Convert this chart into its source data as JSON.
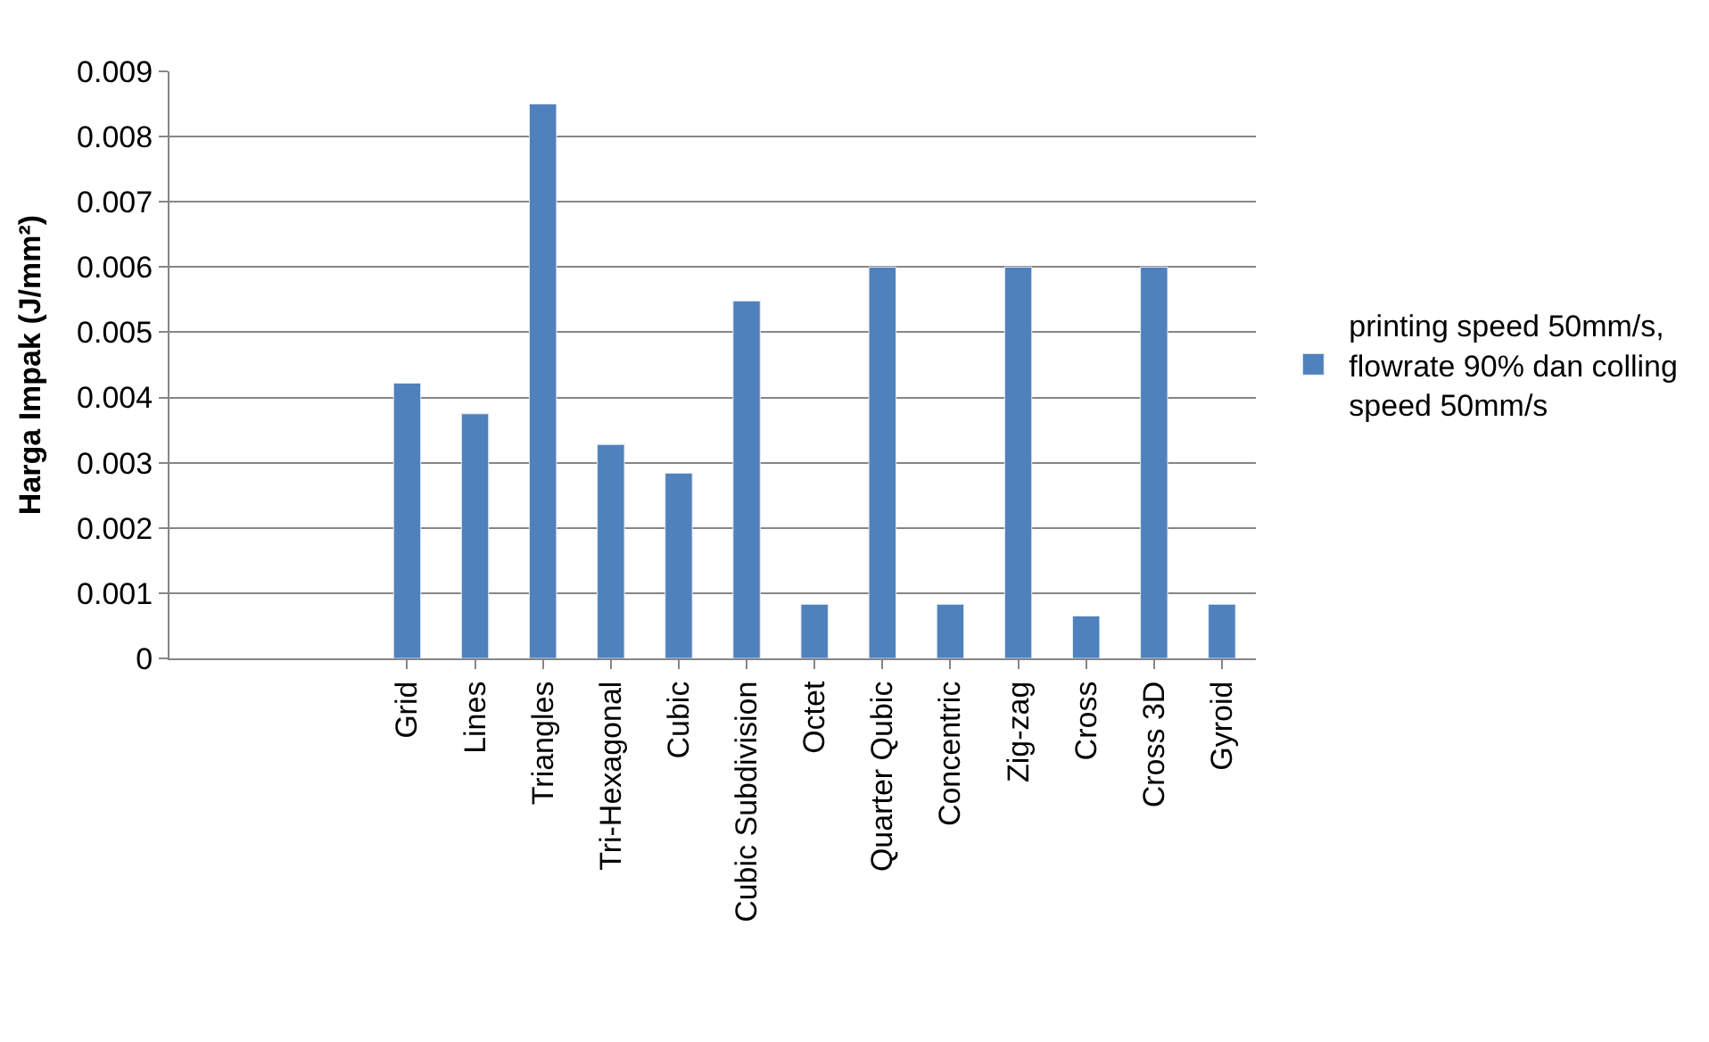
{
  "chart_data": {
    "type": "bar",
    "ylabel": "Harga Impak (J/mm²)",
    "categories": [
      null,
      null,
      null,
      "Grid",
      "Lines",
      "Triangles",
      "Tri-Hexagonal",
      "Cubic",
      "Cubic Subdivision",
      "Octet",
      "Quarter Qubic",
      "Concentric",
      "Zig-zag",
      "Cross",
      "Cross 3D",
      "Gyroid"
    ],
    "series": [
      {
        "name": "printing speed 50mm/s, flowrate 90% dan colling speed 50mm/s",
        "color": "#4f81bd",
        "values": [
          null,
          null,
          null,
          0.00422,
          0.00375,
          0.0085,
          0.00328,
          0.00284,
          0.00548,
          0.00083,
          0.006,
          0.00083,
          0.006,
          0.00065,
          0.006,
          0.00083
        ]
      }
    ],
    "ylim": [
      0,
      0.009
    ],
    "yticks": [
      0,
      0.001,
      0.002,
      0.003,
      0.004,
      0.005,
      0.006,
      0.007,
      0.008,
      0.009
    ],
    "grid": "y",
    "legend": "right"
  }
}
